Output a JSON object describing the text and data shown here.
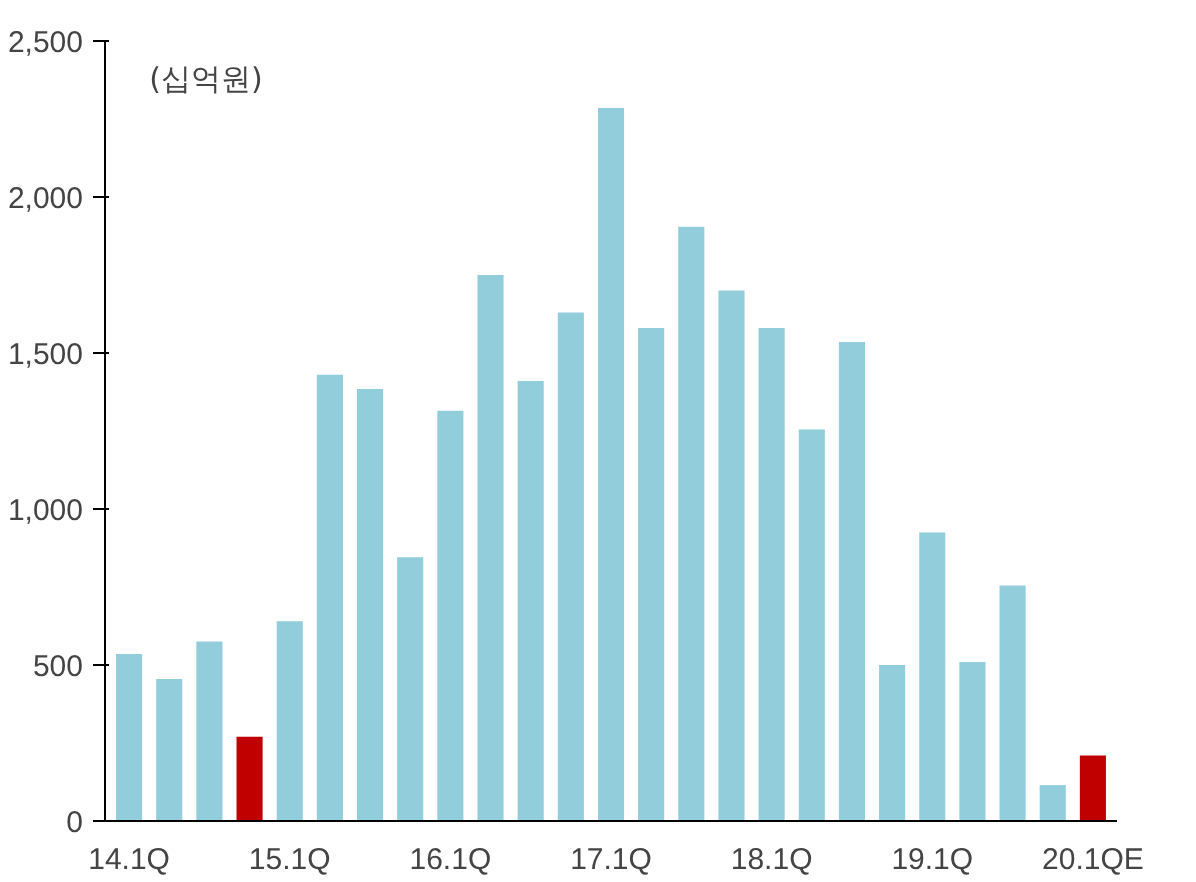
{
  "chart_data": {
    "type": "bar",
    "categories": [
      "14.1Q",
      null,
      null,
      null,
      "15.1Q",
      null,
      null,
      null,
      "16.1Q",
      null,
      null,
      null,
      "17.1Q",
      null,
      null,
      null,
      "18.1Q",
      null,
      null,
      null,
      "19.1Q",
      null,
      null,
      null,
      "20.1QE"
    ],
    "values": [
      535,
      455,
      575,
      270,
      640,
      1430,
      1385,
      845,
      1315,
      1750,
      1410,
      1630,
      2285,
      1580,
      1905,
      1700,
      1580,
      1255,
      1535,
      500,
      925,
      510,
      755,
      115,
      210
    ],
    "colors": [
      "#92cddc",
      "#92cddc",
      "#92cddc",
      "#c00000",
      "#92cddc",
      "#92cddc",
      "#92cddc",
      "#92cddc",
      "#92cddc",
      "#92cddc",
      "#92cddc",
      "#92cddc",
      "#92cddc",
      "#92cddc",
      "#92cddc",
      "#92cddc",
      "#92cddc",
      "#92cddc",
      "#92cddc",
      "#92cddc",
      "#92cddc",
      "#92cddc",
      "#92cddc",
      "#92cddc",
      "#c00000"
    ],
    "ylim": [
      0,
      2500
    ],
    "yticks": [
      0,
      {
        "value": 500,
        "label": "500"
      },
      {
        "value": 1000,
        "label": "1,000"
      },
      {
        "value": 1500,
        "label": "1,500"
      },
      {
        "value": 2000,
        "label": "2,000"
      },
      {
        "value": 2500,
        "label": "2,500"
      }
    ],
    "annotations": [
      "(십억원)"
    ],
    "grid": false
  }
}
